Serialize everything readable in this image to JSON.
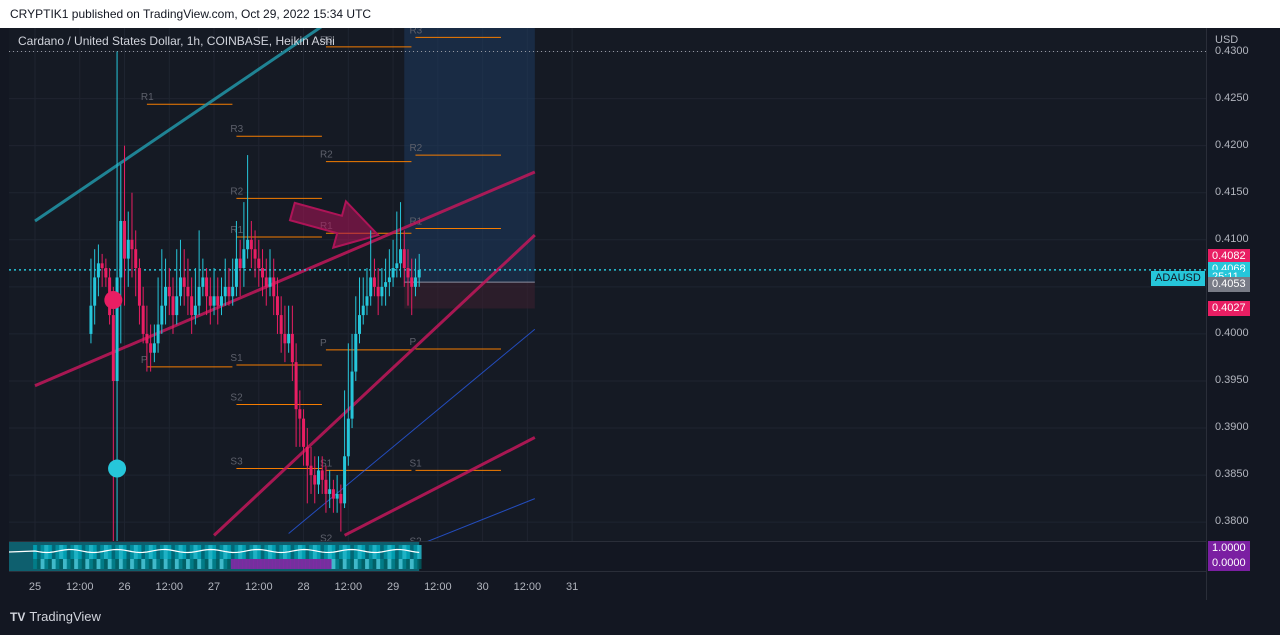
{
  "header": {
    "publish_line": "CRYPTIK1 published on TradingView.com, Oct 29, 2022 15:34 UTC"
  },
  "chart": {
    "symbol_title": "Cardano / United States Dollar, 1h, COINBASE, Heikin Ashi",
    "currency": "USD",
    "symbol_tag": "ADAUSD"
  },
  "price_tags": [
    {
      "label": "0.4082",
      "color": "#e91e63"
    },
    {
      "label": "0.4068",
      "color": "#26c6da"
    },
    {
      "label": "25:11",
      "color": "#26c6da"
    },
    {
      "label": "0.4053",
      "color": "#787b86"
    },
    {
      "label": "0.4027",
      "color": "#e91e63"
    }
  ],
  "indicator_tags": [
    {
      "label": "1.0000",
      "color": "#7b1fa2"
    },
    {
      "label": "0.0000",
      "color": "#7b1fa2"
    }
  ],
  "footer": {
    "brand": "TradingView",
    "mark": "TV"
  },
  "colors": {
    "up_candle": "#26c6da",
    "down_candle": "#e91e63",
    "pivot_lines": "#f57c00",
    "channel_teal": "#2196a8",
    "channel_pink": "#c2185b",
    "blue_lines": "#2962ff",
    "arrow": "#ad1457"
  },
  "chart_data": {
    "type": "candlestick",
    "style": "Heikin Ashi",
    "timeframe": "1h",
    "exchange": "COINBASE",
    "price_axis": {
      "min": 0.378,
      "max": 0.4325,
      "ticks": [
        "0.4300",
        "0.4250",
        "0.4200",
        "0.4150",
        "0.4100",
        "0.4050",
        "0.4000",
        "0.3950",
        "0.3900",
        "0.3850",
        "0.3800"
      ]
    },
    "time_axis": {
      "labels": [
        "25",
        "12:00",
        "26",
        "12:00",
        "27",
        "12:00",
        "28",
        "12:00",
        "29",
        "12:00",
        "30",
        "12:00",
        "31"
      ]
    },
    "last_price": 0.4068,
    "countdown": "25:11",
    "dotted_level": 0.43,
    "pivot_sets": [
      {
        "start_hour": 30,
        "end_hour": 54,
        "levels": [
          {
            "name": "R1",
            "value": 0.4244
          },
          {
            "name": "P",
            "value": 0.3965
          }
        ]
      },
      {
        "start_hour": 54,
        "end_hour": 78,
        "levels": [
          {
            "name": "R3",
            "value": 0.421
          },
          {
            "name": "R2",
            "value": 0.4144
          },
          {
            "name": "R1",
            "value": 0.4103
          },
          {
            "name": "S1",
            "value": 0.3967
          },
          {
            "name": "S2",
            "value": 0.3925
          },
          {
            "name": "S3",
            "value": 0.3857
          }
        ]
      },
      {
        "start_hour": 78,
        "end_hour": 102,
        "levels": [
          {
            "name": "R3",
            "value": 0.4305
          },
          {
            "name": "R2",
            "value": 0.4183
          },
          {
            "name": "R1",
            "value": 0.4107
          },
          {
            "name": "P",
            "value": 0.3983
          },
          {
            "name": "S1",
            "value": 0.3855
          },
          {
            "name": "S2",
            "value": 0.3775
          }
        ]
      },
      {
        "start_hour": 102,
        "end_hour": 126,
        "levels": [
          {
            "name": "R3",
            "value": 0.4315
          },
          {
            "name": "R2",
            "value": 0.419
          },
          {
            "name": "R1",
            "value": 0.4112
          },
          {
            "name": "P",
            "value": 0.3984
          },
          {
            "name": "S1",
            "value": 0.3855
          },
          {
            "name": "S2",
            "value": 0.3772
          }
        ]
      }
    ],
    "trendlines": [
      {
        "name": "teal-upper",
        "color": "#2196a8",
        "p1": [
          0,
          0.412
        ],
        "p2": [
          80,
          0.4335
        ]
      },
      {
        "name": "pink-lower",
        "color": "#c2185b",
        "p1": [
          0,
          0.3945
        ],
        "p2": [
          134,
          0.4172
        ]
      },
      {
        "name": "pink-channel",
        "color": "#c2185b",
        "p1": [
          48,
          0.3786
        ],
        "p2": [
          134,
          0.4105
        ]
      },
      {
        "name": "pink-bottom",
        "color": "#c2185b",
        "p1": [
          83,
          0.3786
        ],
        "p2": [
          134,
          0.389
        ]
      },
      {
        "name": "blue-1",
        "color": "#2962ff",
        "p1": [
          68,
          0.3788
        ],
        "p2": [
          134,
          0.4005
        ]
      },
      {
        "name": "blue-2",
        "color": "#2962ff",
        "p1": [
          103,
          0.3776
        ],
        "p2": [
          134,
          0.3825
        ]
      }
    ],
    "projection_zone": {
      "from_hour": 99,
      "to_hour": 134,
      "top": 0.434,
      "mid": 0.4055,
      "bottom": 0.4027
    },
    "arrow": {
      "from": [
        69,
        0.413
      ],
      "to": [
        92,
        0.4105
      ]
    },
    "markers": [
      {
        "hour": 21,
        "price": 0.4036,
        "color": "#e91e63"
      },
      {
        "hour": 22,
        "price": 0.3857,
        "color": "#26c6da"
      }
    ],
    "candles": [
      [
        15,
        0.4,
        0.403,
        0.408,
        0.399
      ],
      [
        16,
        0.403,
        0.406,
        0.409,
        0.401
      ],
      [
        17,
        0.406,
        0.4075,
        0.4095,
        0.404
      ],
      [
        18,
        0.4075,
        0.407,
        0.4085,
        0.405
      ],
      [
        19,
        0.407,
        0.406,
        0.408,
        0.405
      ],
      [
        20,
        0.406,
        0.402,
        0.407,
        0.401
      ],
      [
        21,
        0.402,
        0.395,
        0.405,
        0.378
      ],
      [
        22,
        0.395,
        0.406,
        0.43,
        0.378
      ],
      [
        23,
        0.406,
        0.412,
        0.418,
        0.399
      ],
      [
        24,
        0.412,
        0.408,
        0.42,
        0.403
      ],
      [
        25,
        0.408,
        0.41,
        0.413,
        0.405
      ],
      [
        26,
        0.41,
        0.409,
        0.415,
        0.406
      ],
      [
        27,
        0.409,
        0.407,
        0.411,
        0.404
      ],
      [
        28,
        0.407,
        0.403,
        0.408,
        0.401
      ],
      [
        29,
        0.403,
        0.4,
        0.405,
        0.399
      ],
      [
        30,
        0.4,
        0.399,
        0.403,
        0.396
      ],
      [
        31,
        0.399,
        0.398,
        0.401,
        0.396
      ],
      [
        32,
        0.398,
        0.399,
        0.401,
        0.397
      ],
      [
        33,
        0.399,
        0.401,
        0.406,
        0.398
      ],
      [
        34,
        0.401,
        0.403,
        0.409,
        0.4
      ],
      [
        35,
        0.403,
        0.405,
        0.408,
        0.401
      ],
      [
        36,
        0.405,
        0.404,
        0.407,
        0.402
      ],
      [
        37,
        0.404,
        0.402,
        0.406,
        0.4
      ],
      [
        38,
        0.402,
        0.404,
        0.409,
        0.401
      ],
      [
        39,
        0.404,
        0.406,
        0.41,
        0.403
      ],
      [
        40,
        0.406,
        0.405,
        0.409,
        0.403
      ],
      [
        41,
        0.405,
        0.404,
        0.408,
        0.402
      ],
      [
        42,
        0.404,
        0.402,
        0.406,
        0.4
      ],
      [
        43,
        0.402,
        0.403,
        0.407,
        0.401
      ],
      [
        44,
        0.403,
        0.405,
        0.411,
        0.402
      ],
      [
        45,
        0.405,
        0.406,
        0.408,
        0.404
      ],
      [
        46,
        0.406,
        0.404,
        0.407,
        0.402
      ],
      [
        47,
        0.404,
        0.403,
        0.406,
        0.401
      ],
      [
        48,
        0.403,
        0.404,
        0.407,
        0.402
      ],
      [
        49,
        0.404,
        0.403,
        0.406,
        0.401
      ],
      [
        50,
        0.403,
        0.404,
        0.406,
        0.402
      ],
      [
        51,
        0.404,
        0.405,
        0.408,
        0.403
      ],
      [
        52,
        0.405,
        0.404,
        0.407,
        0.403
      ],
      [
        53,
        0.404,
        0.405,
        0.408,
        0.403
      ],
      [
        54,
        0.405,
        0.408,
        0.412,
        0.404
      ],
      [
        55,
        0.408,
        0.407,
        0.41,
        0.404
      ],
      [
        56,
        0.407,
        0.409,
        0.414,
        0.405
      ],
      [
        57,
        0.409,
        0.41,
        0.419,
        0.408
      ],
      [
        58,
        0.41,
        0.409,
        0.412,
        0.407
      ],
      [
        59,
        0.409,
        0.408,
        0.411,
        0.406
      ],
      [
        60,
        0.408,
        0.407,
        0.41,
        0.405
      ],
      [
        61,
        0.407,
        0.406,
        0.409,
        0.404
      ],
      [
        62,
        0.406,
        0.405,
        0.408,
        0.403
      ],
      [
        63,
        0.405,
        0.406,
        0.409,
        0.404
      ],
      [
        64,
        0.406,
        0.404,
        0.408,
        0.402
      ],
      [
        65,
        0.404,
        0.402,
        0.406,
        0.4
      ],
      [
        66,
        0.402,
        0.4,
        0.404,
        0.398
      ],
      [
        67,
        0.4,
        0.399,
        0.403,
        0.397
      ],
      [
        68,
        0.399,
        0.4,
        0.403,
        0.398
      ],
      [
        69,
        0.4,
        0.397,
        0.403,
        0.395
      ],
      [
        70,
        0.397,
        0.392,
        0.399,
        0.388
      ],
      [
        71,
        0.392,
        0.391,
        0.394,
        0.388
      ],
      [
        72,
        0.391,
        0.388,
        0.392,
        0.386
      ],
      [
        73,
        0.388,
        0.386,
        0.39,
        0.382
      ],
      [
        74,
        0.386,
        0.385,
        0.388,
        0.383
      ],
      [
        75,
        0.385,
        0.384,
        0.387,
        0.382
      ],
      [
        76,
        0.384,
        0.3855,
        0.387,
        0.383
      ],
      [
        77,
        0.3855,
        0.3845,
        0.387,
        0.383
      ],
      [
        78,
        0.3845,
        0.383,
        0.386,
        0.381
      ],
      [
        79,
        0.383,
        0.3835,
        0.3855,
        0.3815
      ],
      [
        80,
        0.3835,
        0.3825,
        0.3845,
        0.381
      ],
      [
        81,
        0.3825,
        0.383,
        0.385,
        0.381
      ],
      [
        82,
        0.383,
        0.382,
        0.384,
        0.379
      ],
      [
        83,
        0.382,
        0.387,
        0.394,
        0.3815
      ],
      [
        84,
        0.387,
        0.391,
        0.399,
        0.386
      ],
      [
        85,
        0.391,
        0.396,
        0.4,
        0.39
      ],
      [
        86,
        0.396,
        0.4,
        0.404,
        0.395
      ],
      [
        87,
        0.4,
        0.402,
        0.406,
        0.399
      ],
      [
        88,
        0.402,
        0.403,
        0.406,
        0.401
      ],
      [
        89,
        0.403,
        0.404,
        0.407,
        0.402
      ],
      [
        90,
        0.404,
        0.406,
        0.411,
        0.403
      ],
      [
        91,
        0.406,
        0.405,
        0.408,
        0.404
      ],
      [
        92,
        0.405,
        0.404,
        0.407,
        0.402
      ],
      [
        93,
        0.404,
        0.405,
        0.407,
        0.403
      ],
      [
        94,
        0.405,
        0.4055,
        0.408,
        0.403
      ],
      [
        95,
        0.4055,
        0.406,
        0.409,
        0.404
      ],
      [
        96,
        0.406,
        0.407,
        0.41,
        0.405
      ],
      [
        97,
        0.407,
        0.4075,
        0.413,
        0.406
      ],
      [
        98,
        0.4075,
        0.409,
        0.414,
        0.406
      ],
      [
        99,
        0.409,
        0.407,
        0.411,
        0.405
      ],
      [
        100,
        0.407,
        0.406,
        0.409,
        0.403
      ],
      [
        101,
        0.406,
        0.405,
        0.408,
        0.402
      ],
      [
        102,
        0.405,
        0.406,
        0.408,
        0.404
      ],
      [
        103,
        0.406,
        0.4068,
        0.4085,
        0.405
      ]
    ]
  }
}
